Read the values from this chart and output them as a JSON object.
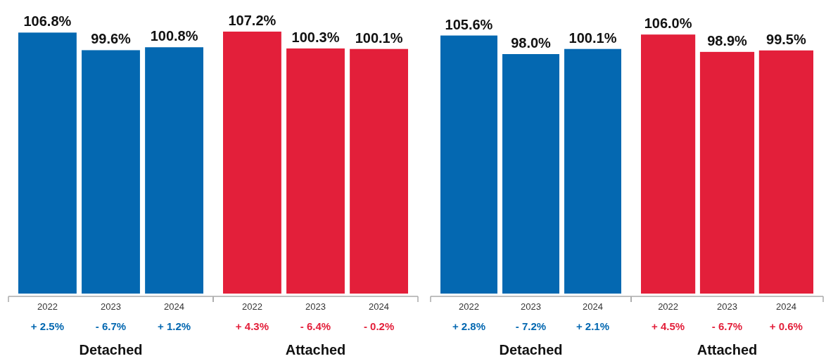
{
  "chart_data": [
    {
      "type": "bar",
      "xlabel": "Detached",
      "categories": [
        "2022",
        "2023",
        "2024"
      ],
      "values": [
        106.8,
        99.6,
        100.8
      ],
      "value_labels": [
        "106.8%",
        "99.6%",
        "100.8%"
      ],
      "color": "#0468b1",
      "annotations": [
        "+ 2.5%",
        "- 6.7%",
        "+ 1.2%"
      ]
    },
    {
      "type": "bar",
      "xlabel": "Attached",
      "categories": [
        "2022",
        "2023",
        "2024"
      ],
      "values": [
        107.2,
        100.3,
        100.1
      ],
      "value_labels": [
        "107.2%",
        "100.3%",
        "100.1%"
      ],
      "color": "#e31f3a",
      "annotations": [
        "+ 4.3%",
        "- 6.4%",
        "- 0.2%"
      ]
    },
    {
      "type": "bar",
      "xlabel": "Detached",
      "categories": [
        "2022",
        "2023",
        "2024"
      ],
      "values": [
        105.6,
        98.0,
        100.1
      ],
      "value_labels": [
        "105.6%",
        "98.0%",
        "100.1%"
      ],
      "color": "#0468b1",
      "annotations": [
        "+ 2.8%",
        "- 7.2%",
        "+ 2.1%"
      ]
    },
    {
      "type": "bar",
      "xlabel": "Attached",
      "categories": [
        "2022",
        "2023",
        "2024"
      ],
      "values": [
        106.0,
        98.9,
        99.5
      ],
      "value_labels": [
        "106.0%",
        "98.9%",
        "99.5%"
      ],
      "color": "#e31f3a",
      "annotations": [
        "+ 4.5%",
        "- 6.7%",
        "+ 0.6%"
      ]
    }
  ]
}
